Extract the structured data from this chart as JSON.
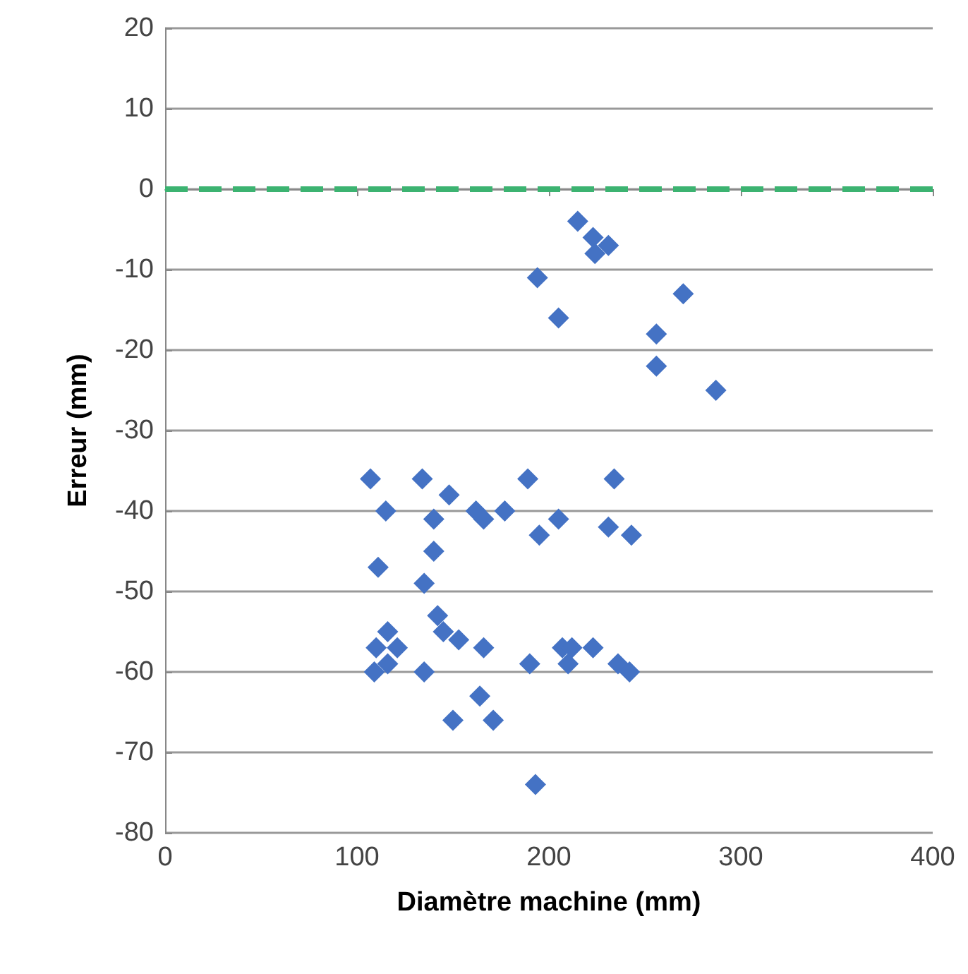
{
  "chart_data": {
    "type": "scatter",
    "xlabel": "Diamètre machine (mm)",
    "ylabel": "Erreur (mm)",
    "x": [
      194,
      215,
      223,
      224,
      231,
      205,
      270,
      256,
      256,
      287,
      107,
      115,
      111,
      134,
      148,
      140,
      140,
      135,
      162,
      166,
      177,
      189,
      195,
      205,
      234,
      231,
      243,
      116,
      110,
      121,
      109,
      116,
      135,
      142,
      145,
      153,
      166,
      164,
      150,
      171,
      190,
      193,
      207,
      212,
      210,
      223,
      236,
      242
    ],
    "series": [
      {
        "color": "#4472c4",
        "values": [
          -11,
          -4,
          -6,
          -8,
          -7,
          -16,
          -13,
          -18,
          -22,
          -25,
          -36,
          -40,
          -47,
          -36,
          -38,
          -41,
          -45,
          -49,
          -40,
          -41,
          -40,
          -36,
          -43,
          -41,
          -36,
          -42,
          -43,
          -55,
          -57,
          -57,
          -60,
          -59,
          -60,
          -53,
          -55,
          -56,
          -57,
          -63,
          -66,
          -66,
          -59,
          -74,
          -57,
          -57,
          -59,
          -57,
          -59,
          -60
        ]
      }
    ],
    "marker": "diamond",
    "xlim": [
      0,
      400
    ],
    "xticks": [
      0,
      100,
      200,
      300,
      400
    ],
    "ylim": [
      -80,
      20
    ],
    "yticks": [
      -80,
      -70,
      -60,
      -50,
      -40,
      -30,
      -20,
      -10,
      0,
      10,
      20
    ],
    "grid": "y",
    "ref_lines": [
      {
        "axis": "y",
        "value": 0,
        "color": "#3cb371",
        "line_style": "dashed"
      }
    ]
  }
}
